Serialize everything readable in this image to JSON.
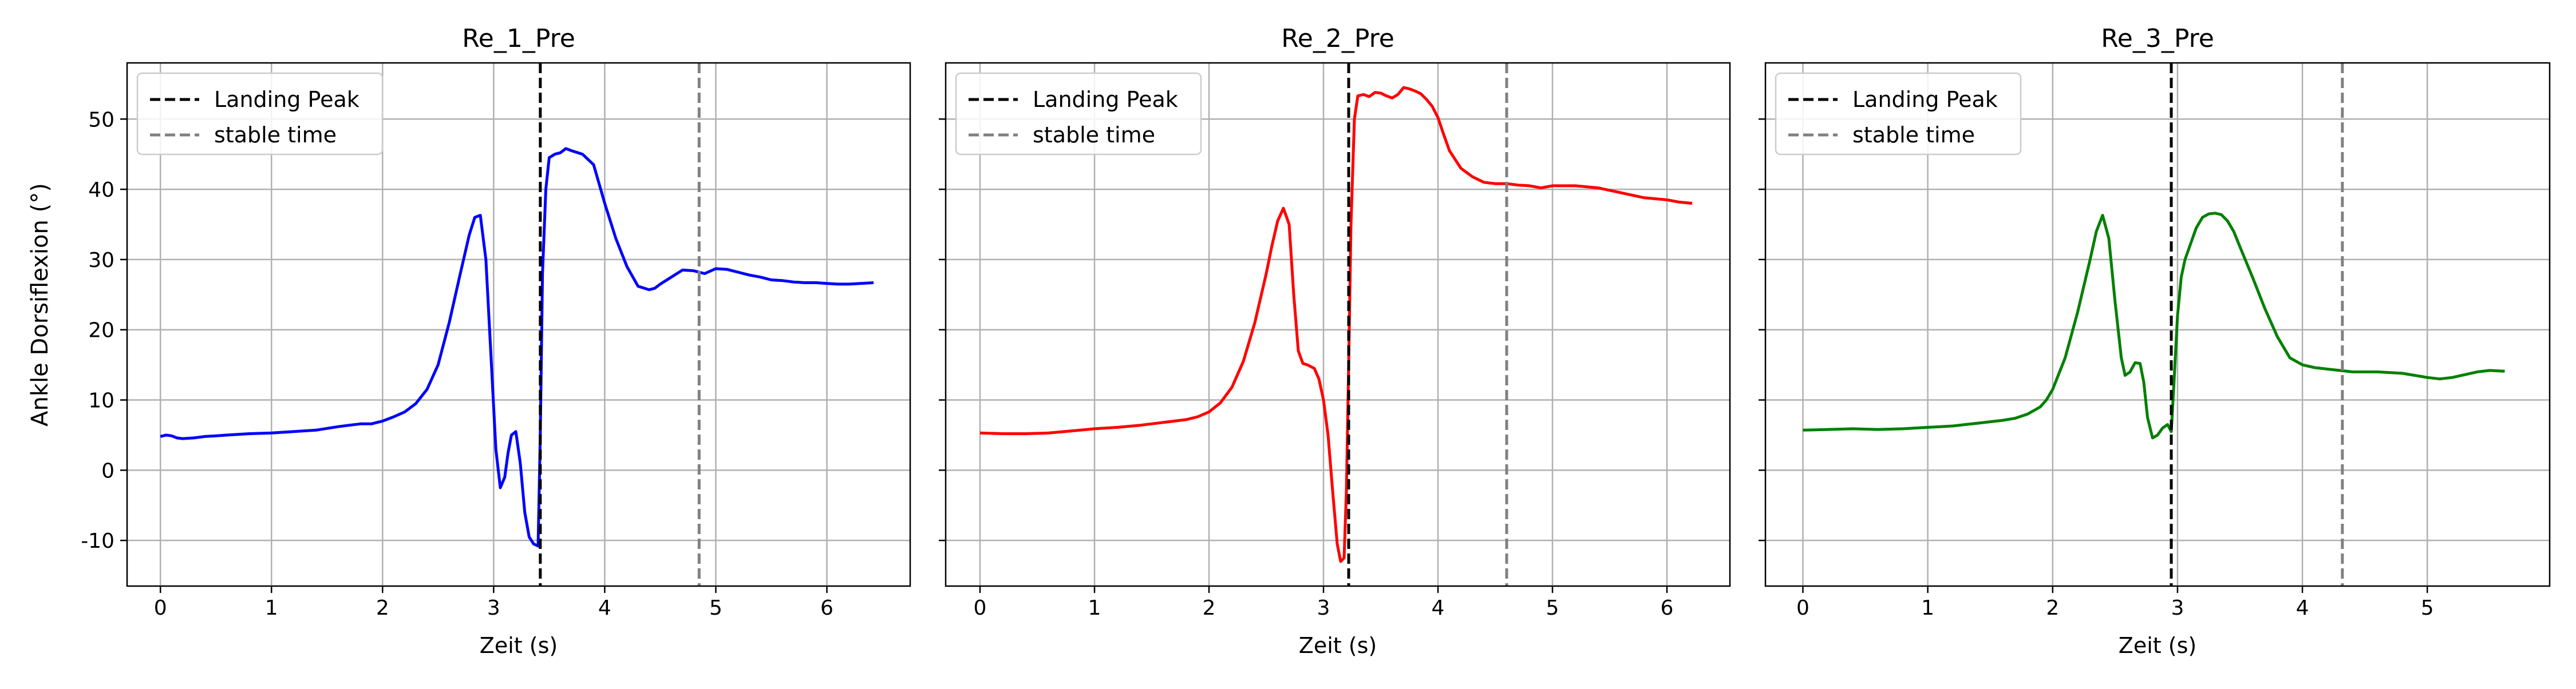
{
  "figure": {
    "ylabel": "Ankle Dorsiflexion (°)",
    "legend_labels": [
      "Landing Peak",
      "stable time"
    ],
    "legend_placement": "upper-left",
    "grid": true
  },
  "chart_data": [
    {
      "type": "line",
      "title": "Re_1_Pre",
      "xlabel": "Zeit (s)",
      "ylabel": "Ankle Dorsiflexion (°)",
      "xlim": [
        -0.3,
        6.75
      ],
      "ylim": [
        -16.5,
        58
      ],
      "xticks": [
        0,
        1,
        2,
        3,
        4,
        5,
        6
      ],
      "yticks": [
        -10,
        0,
        10,
        20,
        30,
        40,
        50
      ],
      "show_yticklabels": true,
      "color": "#0000ff",
      "landing_peak": 3.42,
      "stable_time": 4.85,
      "x": [
        0.0,
        0.05,
        0.1,
        0.15,
        0.2,
        0.3,
        0.4,
        0.5,
        0.6,
        0.8,
        1.0,
        1.2,
        1.4,
        1.6,
        1.7,
        1.8,
        1.9,
        1.95,
        2.0,
        2.1,
        2.2,
        2.3,
        2.4,
        2.5,
        2.6,
        2.7,
        2.78,
        2.83,
        2.88,
        2.93,
        2.98,
        3.02,
        3.06,
        3.1,
        3.13,
        3.16,
        3.2,
        3.24,
        3.28,
        3.32,
        3.36,
        3.4,
        3.42,
        3.44,
        3.47,
        3.5,
        3.55,
        3.6,
        3.65,
        3.7,
        3.8,
        3.9,
        4.0,
        4.1,
        4.2,
        4.3,
        4.4,
        4.45,
        4.5,
        4.6,
        4.7,
        4.8,
        4.9,
        5.0,
        5.1,
        5.2,
        5.3,
        5.4,
        5.5,
        5.6,
        5.7,
        5.8,
        5.9,
        6.0,
        6.1,
        6.2,
        6.3,
        6.42
      ],
      "y": [
        4.8,
        5.0,
        4.9,
        4.6,
        4.5,
        4.6,
        4.8,
        4.9,
        5.0,
        5.2,
        5.3,
        5.5,
        5.7,
        6.2,
        6.4,
        6.6,
        6.6,
        6.8,
        7.0,
        7.6,
        8.3,
        9.5,
        11.5,
        15.0,
        21.0,
        28.0,
        33.5,
        36.0,
        36.3,
        30.0,
        15.0,
        3.0,
        -2.5,
        -1.0,
        2.5,
        5.0,
        5.5,
        1.0,
        -6.0,
        -9.5,
        -10.5,
        -10.8,
        5.0,
        28.0,
        40.0,
        44.5,
        45.0,
        45.2,
        45.8,
        45.5,
        45.0,
        43.5,
        38.0,
        33.0,
        29.0,
        26.2,
        25.7,
        25.9,
        26.5,
        27.5,
        28.5,
        28.4,
        28.0,
        28.7,
        28.6,
        28.2,
        27.8,
        27.5,
        27.1,
        27.0,
        26.8,
        26.7,
        26.7,
        26.6,
        26.5,
        26.5,
        26.6,
        26.7
      ]
    },
    {
      "type": "line",
      "title": "Re_2_Pre",
      "xlabel": "Zeit (s)",
      "ylabel": "",
      "xlim": [
        -0.3,
        6.55
      ],
      "ylim": [
        -16.5,
        58
      ],
      "xticks": [
        0,
        1,
        2,
        3,
        4,
        5,
        6
      ],
      "yticks": [
        -10,
        0,
        10,
        20,
        30,
        40,
        50
      ],
      "show_yticklabels": false,
      "color": "#ff0000",
      "landing_peak": 3.22,
      "stable_time": 4.6,
      "x": [
        0.0,
        0.2,
        0.4,
        0.6,
        0.8,
        1.0,
        1.2,
        1.4,
        1.6,
        1.8,
        1.9,
        2.0,
        2.1,
        2.2,
        2.3,
        2.4,
        2.5,
        2.55,
        2.6,
        2.65,
        2.7,
        2.74,
        2.78,
        2.82,
        2.86,
        2.92,
        2.96,
        3.0,
        3.04,
        3.08,
        3.12,
        3.15,
        3.18,
        3.2,
        3.22,
        3.24,
        3.27,
        3.3,
        3.35,
        3.4,
        3.45,
        3.5,
        3.55,
        3.6,
        3.65,
        3.7,
        3.75,
        3.8,
        3.85,
        3.9,
        3.95,
        4.0,
        4.05,
        4.1,
        4.2,
        4.3,
        4.4,
        4.5,
        4.6,
        4.7,
        4.8,
        4.9,
        5.0,
        5.2,
        5.4,
        5.6,
        5.8,
        6.0,
        6.1,
        6.22
      ],
      "y": [
        5.3,
        5.2,
        5.2,
        5.3,
        5.6,
        5.9,
        6.1,
        6.4,
        6.8,
        7.2,
        7.6,
        8.3,
        9.6,
        11.8,
        15.5,
        21.0,
        28.0,
        32.0,
        35.5,
        37.3,
        35.0,
        25.0,
        17.0,
        15.2,
        15.0,
        14.5,
        13.0,
        10.0,
        5.0,
        -3.0,
        -10.5,
        -13.0,
        -12.5,
        -3.0,
        15.0,
        35.0,
        50.0,
        53.3,
        53.5,
        53.2,
        53.8,
        53.7,
        53.3,
        53.0,
        53.5,
        54.5,
        54.3,
        54.0,
        53.6,
        52.8,
        51.8,
        50.2,
        47.8,
        45.5,
        43.0,
        41.8,
        41.0,
        40.8,
        40.8,
        40.6,
        40.5,
        40.2,
        40.5,
        40.5,
        40.2,
        39.5,
        38.8,
        38.5,
        38.2,
        38.0
      ]
    },
    {
      "type": "line",
      "title": "Re_3_Pre",
      "xlabel": "Zeit (s)",
      "ylabel": "",
      "xlim": [
        -0.3,
        5.98
      ],
      "ylim": [
        -16.5,
        58
      ],
      "xticks": [
        0,
        1,
        2,
        3,
        4,
        5
      ],
      "yticks": [
        -10,
        0,
        10,
        20,
        30,
        40,
        50
      ],
      "show_yticklabels": false,
      "color": "#008000",
      "landing_peak": 2.95,
      "stable_time": 4.32,
      "x": [
        0.0,
        0.2,
        0.4,
        0.6,
        0.8,
        1.0,
        1.1,
        1.2,
        1.3,
        1.4,
        1.5,
        1.6,
        1.7,
        1.8,
        1.9,
        1.95,
        2.0,
        2.1,
        2.2,
        2.3,
        2.35,
        2.4,
        2.45,
        2.5,
        2.55,
        2.58,
        2.62,
        2.66,
        2.7,
        2.73,
        2.76,
        2.8,
        2.84,
        2.88,
        2.92,
        2.95,
        2.97,
        3.0,
        3.03,
        3.06,
        3.1,
        3.15,
        3.2,
        3.25,
        3.3,
        3.35,
        3.4,
        3.45,
        3.5,
        3.6,
        3.7,
        3.8,
        3.9,
        4.0,
        4.05,
        4.1,
        4.2,
        4.3,
        4.4,
        4.5,
        4.6,
        4.7,
        4.8,
        4.9,
        5.0,
        5.1,
        5.2,
        5.3,
        5.4,
        5.5,
        5.62
      ],
      "y": [
        5.7,
        5.8,
        5.9,
        5.8,
        5.9,
        6.1,
        6.2,
        6.3,
        6.5,
        6.7,
        6.9,
        7.1,
        7.4,
        8.0,
        9.0,
        10.0,
        11.5,
        16.0,
        22.5,
        30.0,
        34.0,
        36.3,
        33.0,
        24.0,
        16.0,
        13.5,
        14.0,
        15.3,
        15.2,
        12.5,
        7.5,
        4.6,
        5.0,
        6.0,
        6.5,
        5.5,
        12.0,
        22.0,
        27.5,
        30.0,
        32.0,
        34.5,
        36.0,
        36.5,
        36.6,
        36.4,
        35.5,
        34.0,
        31.8,
        27.5,
        23.0,
        19.0,
        16.0,
        15.0,
        14.8,
        14.6,
        14.4,
        14.2,
        14.0,
        14.0,
        14.0,
        13.9,
        13.8,
        13.5,
        13.2,
        13.0,
        13.2,
        13.6,
        14.0,
        14.2,
        14.1
      ]
    }
  ]
}
